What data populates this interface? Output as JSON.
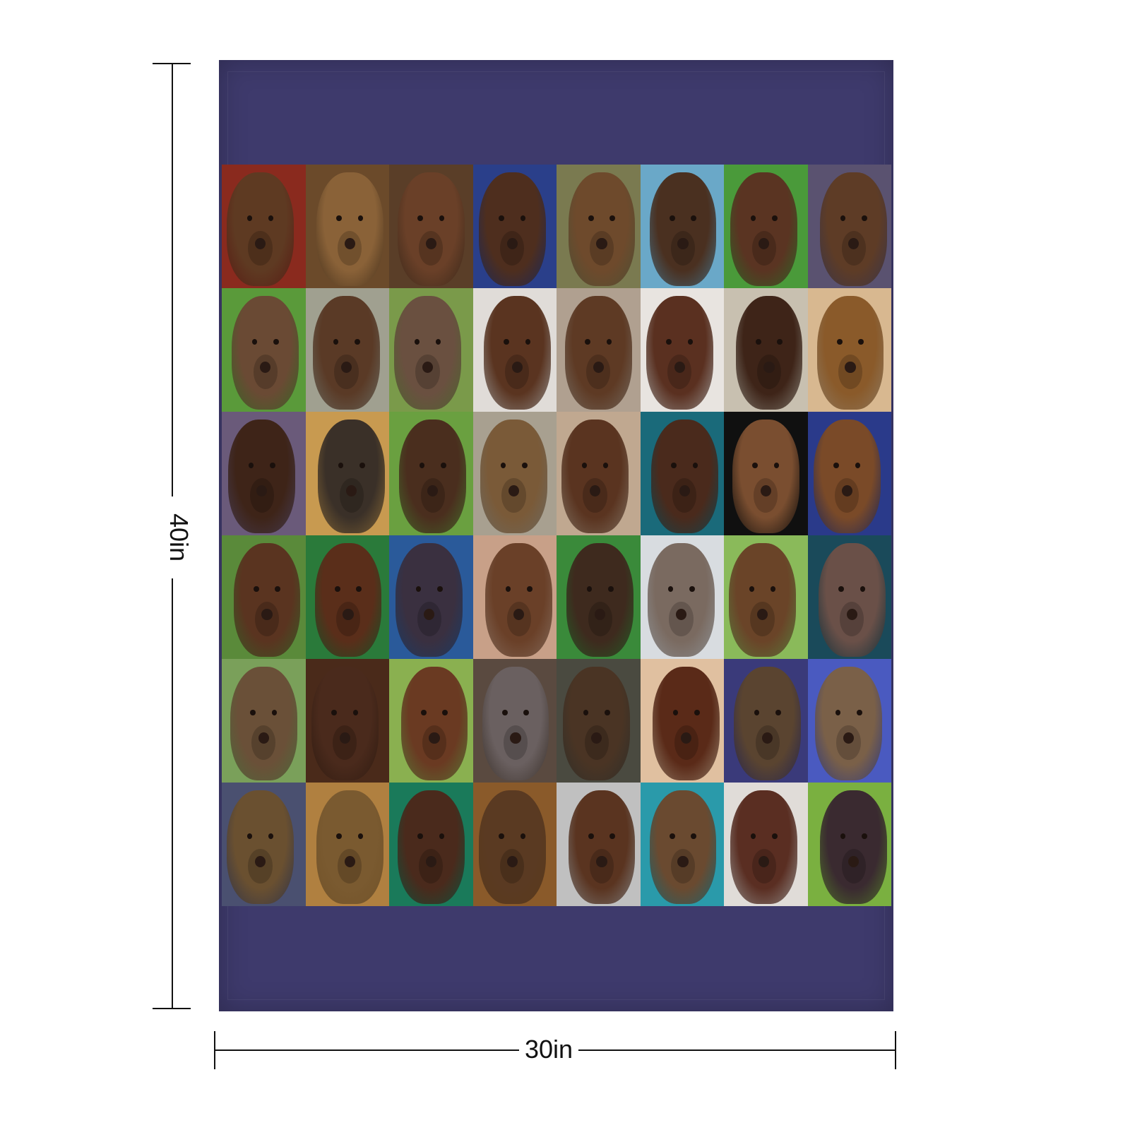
{
  "product": {
    "height_label": "40in",
    "width_label": "30in",
    "blanket_color": "#3e3a6c"
  },
  "tiles": [
    {
      "bg": "#8a2a1e",
      "dog": "#5e3a22"
    },
    {
      "bg": "#6b4a2a",
      "dog": "#8a6238"
    },
    {
      "bg": "#5a3e28",
      "dog": "#6a4028"
    },
    {
      "bg": "#2a3f8a",
      "dog": "#4e2e1e"
    },
    {
      "bg": "#7a7a50",
      "dog": "#6e4a2c"
    },
    {
      "bg": "#6aa8c8",
      "dog": "#4a3020"
    },
    {
      "bg": "#4a9a3a",
      "dog": "#5a3422"
    },
    {
      "bg": "#5a5270",
      "dog": "#5e3c26"
    },
    {
      "bg": "#5a9a3a",
      "dog": "#6a4a34"
    },
    {
      "bg": "#a0a090",
      "dog": "#5a3a26"
    },
    {
      "bg": "#7a9a4a",
      "dog": "#6a5040"
    },
    {
      "bg": "#e0dcd8",
      "dog": "#5a3420"
    },
    {
      "bg": "#b0a090",
      "dog": "#5e3a24"
    },
    {
      "bg": "#e8e4e0",
      "dog": "#5a3020"
    },
    {
      "bg": "#c8c0b0",
      "dog": "#3e2418"
    },
    {
      "bg": "#d8b890",
      "dog": "#8a5a2a"
    },
    {
      "bg": "#6a5a7a",
      "dog": "#3e2418"
    },
    {
      "bg": "#c89a50",
      "dog": "#3a3028"
    },
    {
      "bg": "#6aa040",
      "dog": "#4a2e1e"
    },
    {
      "bg": "#a8a090",
      "dog": "#7a5a38"
    },
    {
      "bg": "#c0a890",
      "dog": "#5a3420"
    },
    {
      "bg": "#1a6a7a",
      "dog": "#4a2a1c"
    },
    {
      "bg": "#101010",
      "dog": "#7a4e30"
    },
    {
      "bg": "#2a3a8a",
      "dog": "#7a4a28"
    },
    {
      "bg": "#5a8a3a",
      "dog": "#5a3420"
    },
    {
      "bg": "#2a7a3a",
      "dog": "#5a2e1a"
    },
    {
      "bg": "#2a5a9a",
      "dog": "#3a3040"
    },
    {
      "bg": "#c8a088",
      "dog": "#6a4028"
    },
    {
      "bg": "#3a8a3a",
      "dog": "#3e2a1e"
    },
    {
      "bg": "#d8dce0",
      "dog": "#7a6a60"
    },
    {
      "bg": "#8aba5a",
      "dog": "#6a4428"
    },
    {
      "bg": "#1a4a5a",
      "dog": "#6a5048"
    },
    {
      "bg": "#7aa05a",
      "dog": "#6a5038"
    },
    {
      "bg": "#4a2a1a",
      "dog": "#4a2a1c"
    },
    {
      "bg": "#8ab050",
      "dog": "#6a3a22"
    },
    {
      "bg": "#5a4a40",
      "dog": "#6a6060"
    },
    {
      "bg": "#4a4a40",
      "dog": "#4a3424"
    },
    {
      "bg": "#e0c0a0",
      "dog": "#5a2a18"
    },
    {
      "bg": "#3a3a7a",
      "dog": "#5a4430"
    },
    {
      "bg": "#4a5ac0",
      "dog": "#7a6048"
    },
    {
      "bg": "#4a5070",
      "dog": "#6a5030"
    },
    {
      "bg": "#b08040",
      "dog": "#7a5a30"
    },
    {
      "bg": "#1a7a5a",
      "dog": "#4a2a1c"
    },
    {
      "bg": "#8a5a2a",
      "dog": "#5a3a22"
    },
    {
      "bg": "#c0c0c0",
      "dog": "#5a3420"
    },
    {
      "bg": "#2a9aaa",
      "dog": "#6a4a30"
    },
    {
      "bg": "#e0dcd8",
      "dog": "#5a2e22"
    },
    {
      "bg": "#7ab040",
      "dog": "#3a2a30"
    }
  ]
}
